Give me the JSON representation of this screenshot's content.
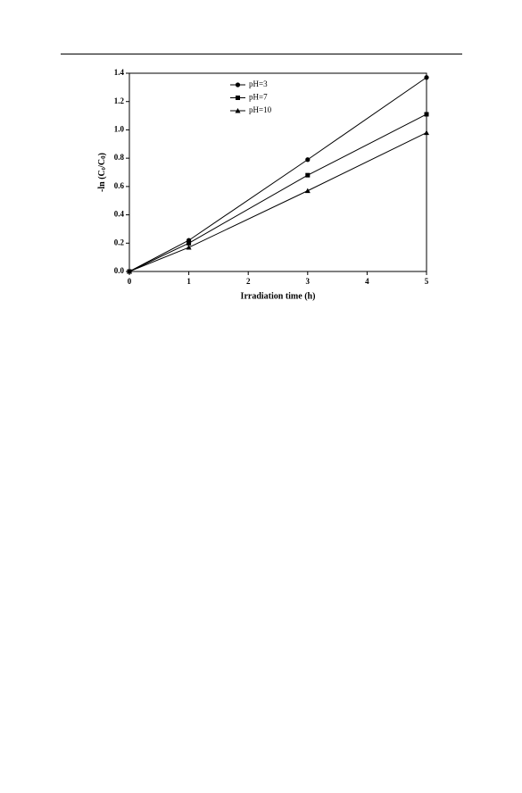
{
  "chart_data": {
    "type": "line",
    "xlabel": "Irradiation time (h)",
    "ylabel": [
      "-ln (C",
      "t",
      "/C",
      "0",
      ")"
    ],
    "x": [
      0,
      1,
      3,
      5
    ],
    "series": [
      {
        "name": "pH=3",
        "color": "#000000",
        "marker": "circle",
        "values": [
          0,
          0.22,
          0.79,
          1.37
        ]
      },
      {
        "name": "pH=7",
        "color": "#000000",
        "marker": "square",
        "values": [
          0,
          0.2,
          0.68,
          1.11
        ]
      },
      {
        "name": "pH=10",
        "color": "#000000",
        "marker": "triangle",
        "values": [
          0,
          0.17,
          0.57,
          0.98
        ]
      }
    ],
    "xlim": [
      0,
      5
    ],
    "xticks": [
      0,
      1,
      2,
      3,
      4,
      5
    ],
    "ylim": [
      0,
      1.4
    ],
    "yticks": [
      {
        "value": 0,
        "label": "0.0"
      },
      0.2,
      0.4,
      0.6,
      0.8,
      {
        "value": 1,
        "label": "1.0"
      },
      1.2,
      1.4
    ],
    "legend": "upper center",
    "grid": false
  }
}
